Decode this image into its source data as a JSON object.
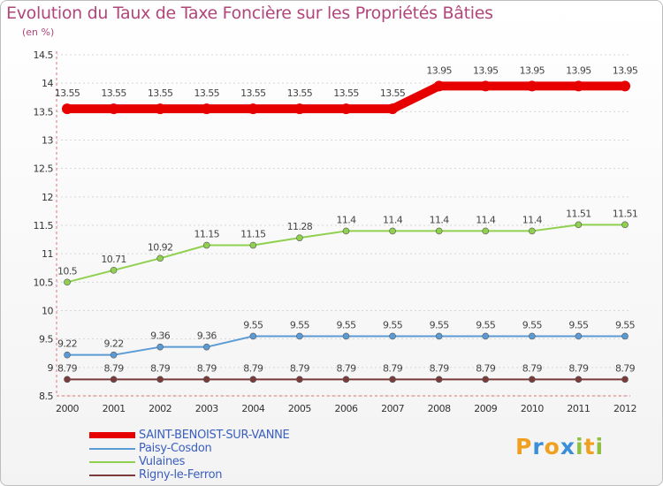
{
  "chart_data": {
    "type": "line",
    "title": "Evolution du Taux de Taxe Foncière sur les Propriétés Bâties",
    "ylabel": "(en %)",
    "xlabel": "",
    "categories": [
      "2000",
      "2001",
      "2002",
      "2003",
      "2004",
      "2005",
      "2006",
      "2007",
      "2008",
      "2009",
      "2010",
      "2011",
      "2012"
    ],
    "yticks": [
      "8.5",
      "9",
      "9.5",
      "10",
      "10.5",
      "11",
      "11.5",
      "12",
      "12.5",
      "13",
      "13.5",
      "14",
      "14.5"
    ],
    "ylim": [
      8.5,
      14.5
    ],
    "series": [
      {
        "name": "SAINT-BENOIST-SUR-VANNE",
        "color": "#e60000",
        "values": [
          13.55,
          13.55,
          13.55,
          13.55,
          13.55,
          13.55,
          13.55,
          13.55,
          13.95,
          13.95,
          13.95,
          13.95,
          13.95
        ],
        "labels": [
          "13.55",
          "13.55",
          "13.55",
          "13.55",
          "13.55",
          "13.55",
          "13.55",
          "13.55",
          "13.95",
          "13.95",
          "13.95",
          "13.95",
          "13.95"
        ]
      },
      {
        "name": "Paisy-Cosdon",
        "color": "#5b9bd5",
        "values": [
          9.22,
          9.22,
          9.36,
          9.36,
          9.55,
          9.55,
          9.55,
          9.55,
          9.55,
          9.55,
          9.55,
          9.55,
          9.55
        ],
        "labels": [
          "9.22",
          "9.22",
          "9.36",
          "9.36",
          "9.55",
          "9.55",
          "9.55",
          "9.55",
          "9.55",
          "9.55",
          "9.55",
          "9.55",
          "9.55"
        ]
      },
      {
        "name": "Vulaines",
        "color": "#8fd14f",
        "values": [
          10.5,
          10.71,
          10.92,
          11.15,
          11.15,
          11.28,
          11.4,
          11.4,
          11.4,
          11.4,
          11.4,
          11.51,
          11.51
        ],
        "labels": [
          "10.5",
          "10.71",
          "10.92",
          "11.15",
          "11.15",
          "11.28",
          "11.4",
          "11.4",
          "11.4",
          "11.4",
          "11.4",
          "11.51",
          "11.51"
        ]
      },
      {
        "name": "Rigny-le-Ferron",
        "color": "#7b3b3b",
        "values": [
          8.79,
          8.79,
          8.79,
          8.79,
          8.79,
          8.79,
          8.79,
          8.79,
          8.79,
          8.79,
          8.79,
          8.79,
          8.79
        ],
        "labels": [
          "8.79",
          "8.79",
          "8.79",
          "8.79",
          "8.79",
          "8.79",
          "8.79",
          "8.79",
          "8.79",
          "8.79",
          "8.79",
          "8.79",
          "8.79"
        ]
      }
    ]
  },
  "logo": {
    "text": [
      "P",
      "r",
      "o",
      "x",
      "i",
      "t",
      "i"
    ],
    "colors": [
      "#f0a020",
      "#3a8fd8",
      "#f0a020",
      "#3a8fd8",
      "#90c040",
      "#f0a020",
      "#90c040"
    ]
  }
}
